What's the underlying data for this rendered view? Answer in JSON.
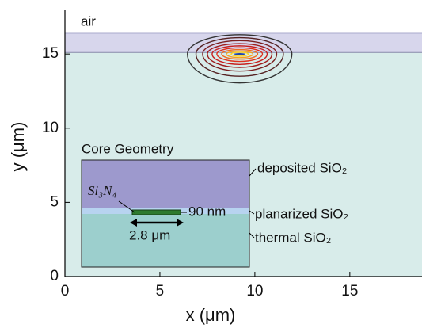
{
  "chart_data": {
    "type": "mode-profile",
    "xlabel": "x (μm)",
    "ylabel": "y (μm)",
    "xlim": [
      0,
      18.8
    ],
    "ylim": [
      0,
      18
    ],
    "xticks": [
      0,
      5,
      10,
      15
    ],
    "yticks": [
      0,
      5,
      10,
      15
    ],
    "air_label": "air",
    "cladding_ylim": [
      15.1,
      16.4
    ],
    "mode_center": [
      9.2,
      15.0
    ],
    "contours": {
      "halfwidth": [
        2.75,
        2.3,
        1.95,
        1.7,
        1.45,
        1.2,
        0.95,
        0.7,
        0.45
      ],
      "below": [
        1.95,
        1.5,
        1.15,
        0.9,
        0.7,
        0.5,
        0.35,
        0.25,
        0.15
      ],
      "above": [
        1.3,
        1.1,
        0.9,
        0.7,
        0.55,
        0.42,
        0.3,
        0.2,
        0.12
      ],
      "colors": [
        "#333333",
        "#552222",
        "#7a1f1f",
        "#a01c1c",
        "#c81e1e",
        "#e0301e",
        "#f06a1e",
        "#f8a21e",
        "#ffd21e"
      ]
    },
    "inset": {
      "title": "Core Geometry",
      "deposited": "deposited SiO₂",
      "planarized": "planarized SiO₂",
      "thermal": "thermal SiO₂",
      "core": "Si₃N₄",
      "thickness": "90 nm",
      "width": "2.8 μm"
    }
  }
}
